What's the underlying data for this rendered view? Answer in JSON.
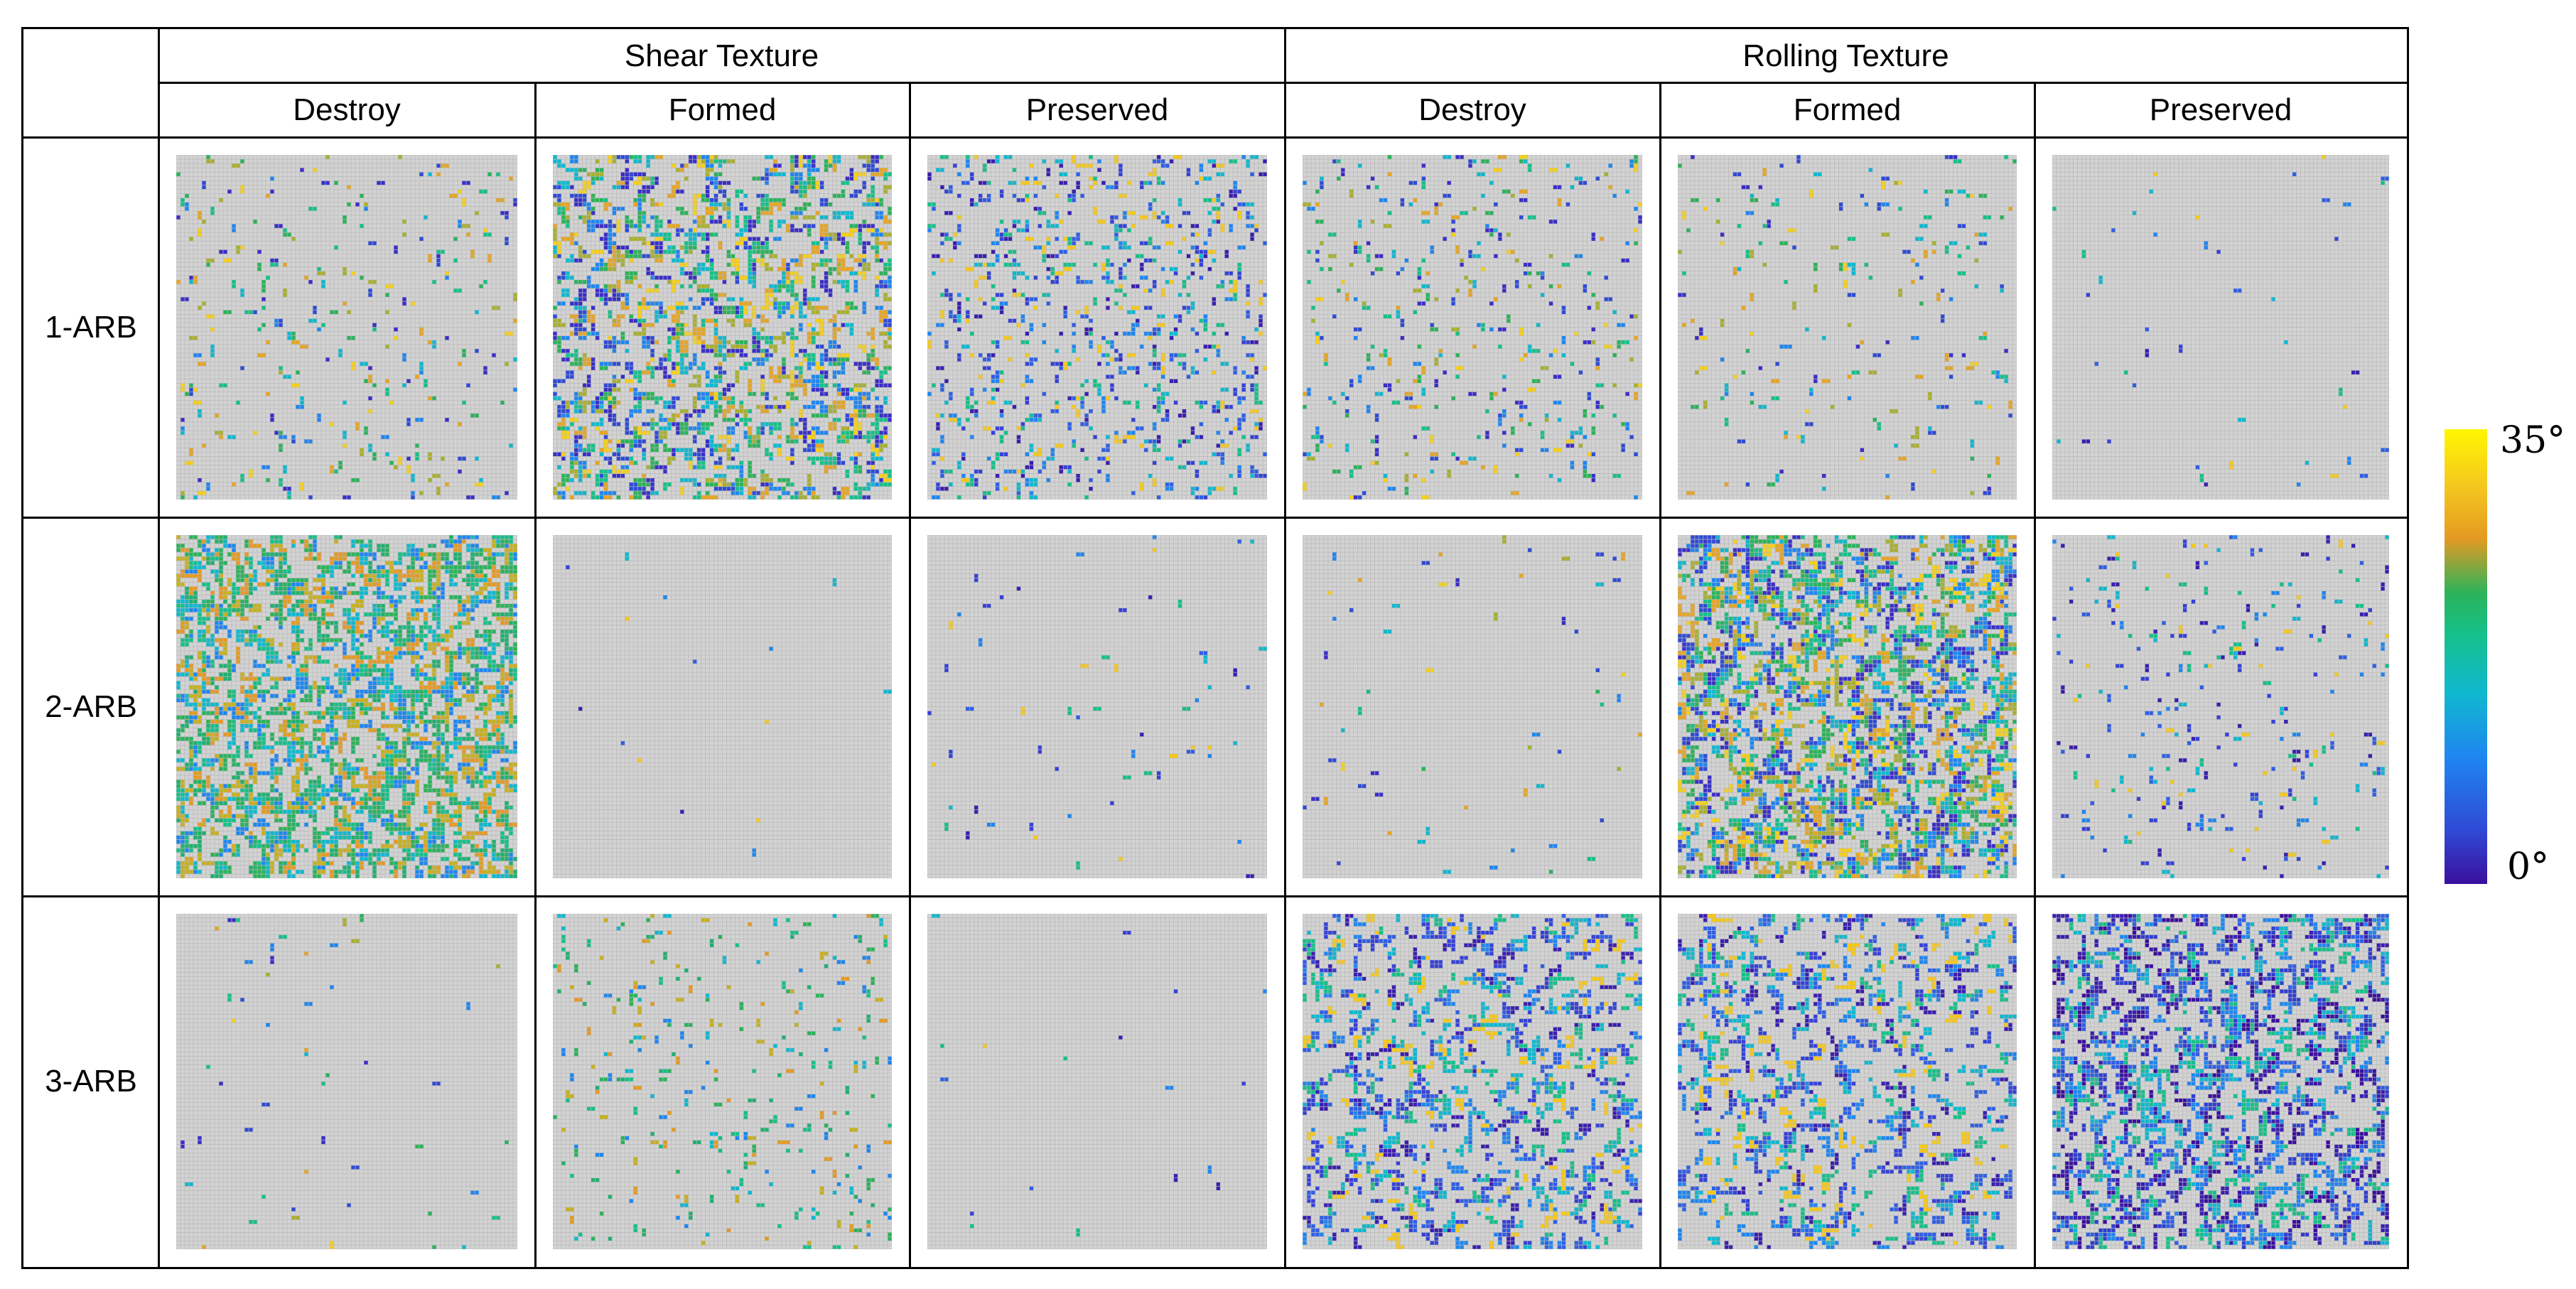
{
  "groups": [
    "Shear Texture",
    "Rolling Texture"
  ],
  "columns": [
    "Destroy",
    "Formed",
    "Preserved",
    "Destroy",
    "Formed",
    "Preserved"
  ],
  "rows": [
    "1-ARB",
    "2-ARB",
    "3-ARB"
  ],
  "colorbar": {
    "max_label": "35°",
    "min_label": "0°",
    "colors": [
      "#3b0f9e",
      "#2f4bd6",
      "#1f86f0",
      "#10b8cf",
      "#16c08a",
      "#2bb35a",
      "#e59a23",
      "#f5c91e",
      "#fff700"
    ]
  },
  "maps": [
    [
      {
        "density": 0.07,
        "hue": "mixed"
      },
      {
        "density": 0.42,
        "hue": "mixed"
      },
      {
        "density": 0.18,
        "hue": "blue"
      },
      {
        "density": 0.09,
        "hue": "mixed"
      },
      {
        "density": 0.05,
        "hue": "mixed"
      },
      {
        "density": 0.01,
        "hue": "blue"
      }
    ],
    [
      {
        "density": 0.55,
        "hue": "green"
      },
      {
        "density": 0.003,
        "hue": "blue"
      },
      {
        "density": 0.015,
        "hue": "blue"
      },
      {
        "density": 0.015,
        "hue": "mixed"
      },
      {
        "density": 0.55,
        "hue": "mixed"
      },
      {
        "density": 0.06,
        "hue": "blue"
      }
    ],
    [
      {
        "density": 0.012,
        "hue": "mixed"
      },
      {
        "density": 0.07,
        "hue": "green"
      },
      {
        "density": 0.004,
        "hue": "blue"
      },
      {
        "density": 0.32,
        "hue": "blue"
      },
      {
        "density": 0.3,
        "hue": "blue"
      },
      {
        "density": 0.45,
        "hue": "deepblue"
      }
    ]
  ]
}
